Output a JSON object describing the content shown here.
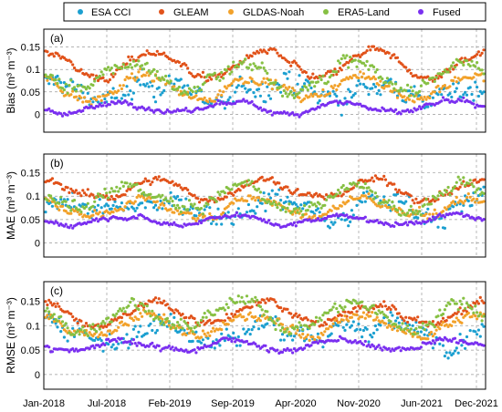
{
  "legend": {
    "items": [
      {
        "label": "ESA CCI",
        "color": "#1b9fd0"
      },
      {
        "label": "GLEAM",
        "color": "#e1521a"
      },
      {
        "label": "GLDAS-Noah",
        "color": "#f2a12a"
      },
      {
        "label": "ERA5-Land",
        "color": "#86c043"
      },
      {
        "label": "Fused",
        "color": "#7a2ff0"
      }
    ]
  },
  "chart_data": [
    {
      "type": "scatter",
      "panel_label": "(a)",
      "ylabel": "Bias (m³ m⁻³)",
      "ylim": [
        -0.04,
        0.19
      ],
      "yticks": [
        0,
        0.05,
        0.1,
        0.15
      ],
      "ytick_labels": [
        "0",
        "0.05",
        "0.1",
        "0.15"
      ],
      "grid": true,
      "series": [
        {
          "name": "ESA CCI",
          "mean": 0.05,
          "amp": 0.02,
          "noise": 0.035
        },
        {
          "name": "GLEAM",
          "mean": 0.11,
          "amp": 0.03,
          "noise": 0.012
        },
        {
          "name": "GLDAS-Noah",
          "mean": 0.06,
          "amp": 0.025,
          "noise": 0.015
        },
        {
          "name": "ERA5-Land",
          "mean": 0.085,
          "amp": 0.03,
          "noise": 0.02
        },
        {
          "name": "Fused",
          "mean": 0.015,
          "amp": 0.012,
          "noise": 0.008
        }
      ]
    },
    {
      "type": "scatter",
      "panel_label": "(b)",
      "ylabel": "MAE (m³ m⁻³)",
      "ylim": [
        -0.03,
        0.19
      ],
      "yticks": [
        0,
        0.05,
        0.1,
        0.15
      ],
      "ytick_labels": [
        "0",
        "0.05",
        "0.1",
        "0.15"
      ],
      "grid": true,
      "series": [
        {
          "name": "ESA CCI",
          "mean": 0.08,
          "amp": 0.015,
          "noise": 0.03
        },
        {
          "name": "GLEAM",
          "mean": 0.115,
          "amp": 0.02,
          "noise": 0.012
        },
        {
          "name": "GLDAS-Noah",
          "mean": 0.075,
          "amp": 0.02,
          "noise": 0.014
        },
        {
          "name": "ERA5-Land",
          "mean": 0.095,
          "amp": 0.025,
          "noise": 0.018
        },
        {
          "name": "Fused",
          "mean": 0.05,
          "amp": 0.01,
          "noise": 0.007
        }
      ]
    },
    {
      "type": "scatter",
      "panel_label": "(c)",
      "ylabel": "RMSE (m³ m⁻³)",
      "ylim": [
        -0.03,
        0.19
      ],
      "yticks": [
        0,
        0.05,
        0.1,
        0.15
      ],
      "ytick_labels": [
        "0",
        "0.05",
        "0.1",
        "0.15"
      ],
      "grid": true,
      "series": [
        {
          "name": "ESA CCI",
          "mean": 0.09,
          "amp": 0.015,
          "noise": 0.03
        },
        {
          "name": "GLEAM",
          "mean": 0.125,
          "amp": 0.02,
          "noise": 0.012
        },
        {
          "name": "GLDAS-Noah",
          "mean": 0.1,
          "amp": 0.02,
          "noise": 0.014
        },
        {
          "name": "ERA5-Land",
          "mean": 0.12,
          "amp": 0.025,
          "noise": 0.018
        },
        {
          "name": "Fused",
          "mean": 0.06,
          "amp": 0.01,
          "noise": 0.008
        }
      ]
    }
  ],
  "xaxis": {
    "ticks": [
      "Jan-2018",
      "Jul-2018",
      "Feb-2019",
      "Sep-2019",
      "Apr-2020",
      "Nov-2020",
      "Jun-2021",
      "Dec-2021"
    ]
  }
}
